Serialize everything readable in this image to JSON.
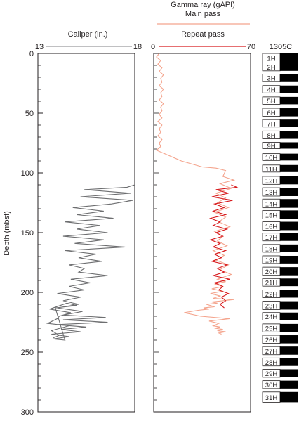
{
  "chart_data": [
    {
      "type": "line",
      "title": "Caliper (in.)",
      "ylabel": "Depth (mbsf)",
      "xlim": [
        13,
        18
      ],
      "ylim": [
        0,
        300
      ],
      "xticks": [
        "13",
        "18"
      ],
      "yticks": [
        "0",
        "50",
        "100",
        "150",
        "200",
        "250",
        "300"
      ],
      "y_inverted": true,
      "grid": false,
      "color": "#6d6e70",
      "series": [
        {
          "x": [
            18.0,
            17.6,
            15.4,
            17.8,
            15.2,
            17.9,
            16.8,
            14.8,
            16.4,
            15.0,
            16.9,
            14.4,
            16.2,
            15.0,
            16.6,
            14.3,
            16.4,
            14.9,
            17.5,
            14.4,
            16.0,
            15.1,
            16.3,
            14.6,
            15.4,
            15.1,
            16.6,
            14.7,
            15.7,
            14.6,
            15.4,
            14.0,
            15.2,
            14.3,
            15.1,
            14.0,
            15.3,
            14.3,
            16.5,
            14.3,
            16.6,
            13.9,
            15.5,
            14.2,
            15.2,
            13.7,
            14.6,
            13.8,
            14.4,
            13.9,
            15.0,
            14.5,
            13.6,
            14.7,
            14.1,
            14.0,
            13.5,
            14.6,
            13.7,
            14.1,
            13.8
          ],
          "y": [
            110,
            112,
            114,
            117,
            120,
            123,
            126,
            129,
            132,
            135,
            138,
            141,
            144,
            147,
            150,
            153,
            156,
            159,
            162,
            165,
            168,
            171,
            174,
            177,
            180,
            183,
            186,
            189,
            192,
            195,
            198,
            201,
            204,
            207,
            210,
            213,
            216,
            219,
            221,
            223,
            225,
            227,
            229,
            231,
            233,
            235,
            237,
            239,
            240,
            213,
            211,
            209,
            214,
            217,
            220,
            222,
            226,
            228,
            232,
            236,
            238
          ]
        }
      ]
    },
    {
      "type": "line",
      "title": "Gamma ray (gAPI)",
      "xlim": [
        0,
        70
      ],
      "ylim": [
        0,
        300
      ],
      "xticks": [
        "0",
        "70"
      ],
      "y_inverted": true,
      "grid": false,
      "legend_position": "top",
      "series": [
        {
          "name": "Main pass",
          "color": "#f4a48d",
          "x": [
            4,
            2,
            5,
            3,
            6,
            4,
            7,
            5,
            6,
            4,
            7,
            5,
            6,
            4,
            7,
            5,
            6,
            4,
            6,
            3,
            6,
            4,
            5,
            3,
            6,
            4,
            5,
            2,
            8,
            20,
            35,
            45,
            52,
            50,
            58,
            48,
            56,
            45,
            52,
            46,
            54,
            44,
            52,
            47,
            55,
            44,
            50,
            46,
            53,
            43,
            51,
            45,
            54,
            48,
            56,
            46,
            52,
            44,
            50,
            42,
            50,
            41,
            48,
            43,
            58,
            42,
            46,
            38,
            44,
            36,
            40,
            32,
            22,
            34,
            55,
            40,
            47,
            43,
            48,
            44,
            50,
            46,
            52,
            47,
            49
          ],
          "y": [
            0,
            3,
            6,
            9,
            12,
            15,
            18,
            21,
            24,
            27,
            30,
            33,
            36,
            39,
            42,
            45,
            48,
            51,
            54,
            57,
            60,
            63,
            66,
            69,
            72,
            75,
            78,
            81,
            84,
            90,
            95,
            96,
            98,
            103,
            106,
            109,
            113,
            117,
            121,
            125,
            129,
            133,
            137,
            141,
            145,
            149,
            153,
            157,
            161,
            165,
            169,
            173,
            177,
            181,
            185,
            189,
            191,
            193,
            195,
            197,
            199,
            201,
            203,
            205,
            206,
            208,
            209,
            210,
            212,
            213,
            214,
            215,
            217,
            220,
            222,
            224,
            226,
            228,
            229,
            230,
            231,
            232,
            233,
            234,
            235
          ]
        },
        {
          "name": "Repeat pass",
          "color": "#d7191c",
          "x": [
            56,
            60,
            45,
            54,
            42,
            57,
            44,
            51,
            43,
            52,
            41,
            48,
            43,
            53,
            45,
            50,
            41,
            48,
            43,
            52,
            44,
            49,
            42,
            53,
            46,
            51,
            43,
            55,
            44,
            50,
            47,
            54,
            49,
            52,
            48,
            51
          ],
          "y": [
            110,
            112,
            114,
            117,
            120,
            123,
            126,
            129,
            132,
            135,
            138,
            141,
            144,
            147,
            150,
            153,
            156,
            159,
            162,
            165,
            168,
            171,
            174,
            177,
            180,
            183,
            186,
            189,
            192,
            195,
            198,
            201,
            204,
            207,
            210,
            213
          ]
        }
      ]
    },
    {
      "type": "table",
      "title": "1305C",
      "core_labels": [
        "1H",
        "2H",
        "3H",
        "4H",
        "5H",
        "6H",
        "7H",
        "8H",
        "9H",
        "10H",
        "11H",
        "12H",
        "13H",
        "14H",
        "15H",
        "16H",
        "17H",
        "18H",
        "19H",
        "20H",
        "21H",
        "22H",
        "23H",
        "24H",
        "25H",
        "26H",
        "27H",
        "28H",
        "29H",
        "30H",
        "31H"
      ],
      "core_top_depth": [
        0,
        7.9,
        17.4,
        26.9,
        36.4,
        45.9,
        55.4,
        64.9,
        74.4,
        83.9,
        93.4,
        102.9,
        112.4,
        121.9,
        131.4,
        140.9,
        150.4,
        159.9,
        169.4,
        178.9,
        188.4,
        197.9,
        207.4,
        216.9,
        226.4,
        235.9,
        245.4,
        254.9,
        264.4,
        273.9,
        283.4
      ],
      "core_bottom_depth": [
        7.9,
        14.6,
        23.4,
        33.1,
        42.6,
        52.7,
        61.6,
        71.5,
        79.7,
        89.6,
        99.3,
        109.6,
        119.4,
        129.2,
        138.5,
        147.9,
        156.9,
        166.4,
        175.8,
        185.7,
        194.8,
        204.4,
        214.4,
        223.2,
        233.1,
        242.7,
        252.2,
        261.6,
        271.1,
        280.5,
        292.0
      ],
      "recovery_color": "#000000"
    }
  ]
}
